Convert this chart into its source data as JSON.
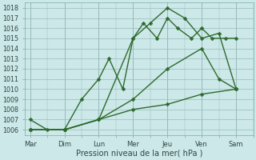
{
  "x_labels": [
    "Mar",
    "Dim",
    "Lun",
    "Mer",
    "Jeu",
    "Ven",
    "Sam"
  ],
  "x_ticks": [
    0,
    1,
    2,
    3,
    4,
    5,
    6
  ],
  "line1": {
    "x": [
      0,
      0.5,
      1,
      1.5,
      2,
      2.3,
      2.7,
      3,
      3.3,
      3.7,
      4,
      4.3,
      4.7,
      5,
      5.3,
      5.7,
      6
    ],
    "y": [
      1007,
      1006,
      1006,
      1009,
      1011,
      1013,
      1010,
      1015,
      1016.5,
      1015,
      1017,
      1016,
      1015,
      1016,
      1015,
      1015,
      1015
    ],
    "color": "#2d6a2d",
    "linewidth": 1.0,
    "markersize": 2.5
  },
  "line2": {
    "x": [
      0,
      1,
      2,
      3,
      3.5,
      4,
      4.5,
      5,
      5.5,
      6
    ],
    "y": [
      1006,
      1006,
      1007,
      1015,
      1016.5,
      1018,
      1017,
      1015,
      1015.5,
      1010
    ],
    "color": "#2d6a2d",
    "linewidth": 1.0,
    "markersize": 2.5
  },
  "line3": {
    "x": [
      0,
      1,
      2,
      3,
      4,
      5,
      5.5,
      6
    ],
    "y": [
      1006,
      1006,
      1007,
      1009,
      1012,
      1014,
      1011,
      1010
    ],
    "color": "#2d6a2d",
    "linewidth": 1.0,
    "markersize": 2.5
  },
  "line4": {
    "x": [
      0,
      1,
      2,
      3,
      4,
      5,
      6
    ],
    "y": [
      1006,
      1006,
      1007,
      1008,
      1008.5,
      1009.5,
      1010
    ],
    "color": "#2d6a2d",
    "linewidth": 1.0,
    "markersize": 2.5
  },
  "ylim": [
    1005.5,
    1018.5
  ],
  "xlim": [
    -0.15,
    6.5
  ],
  "yticks": [
    1006,
    1007,
    1008,
    1009,
    1010,
    1011,
    1012,
    1013,
    1014,
    1015,
    1016,
    1017,
    1018
  ],
  "xlabel": "Pression niveau de la mer( hPa )",
  "bg_color": "#cce8e8",
  "grid_color": "#99bbbb",
  "tick_label_color": "#334444",
  "marker": "D"
}
